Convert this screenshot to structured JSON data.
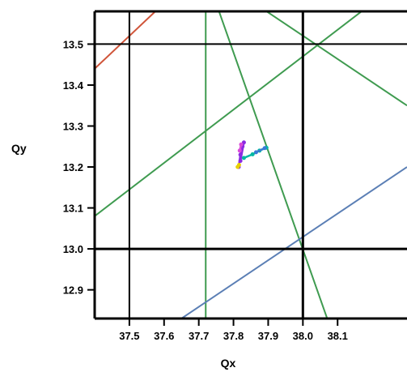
{
  "chart_data": {
    "type": "line",
    "title": "",
    "xlabel": "Qx",
    "ylabel": "Qy",
    "xlim": [
      37.4,
      38.3
    ],
    "ylim": [
      12.83,
      13.58
    ],
    "xticks": [
      37.5,
      37.6,
      37.7,
      37.8,
      37.9,
      38.0,
      38.1
    ],
    "xtick_labels": [
      "37.5",
      "37.6",
      "37.7",
      "37.8",
      "37.9",
      "38.0",
      "38.1"
    ],
    "yticks": [
      12.9,
      13.0,
      13.1,
      13.2,
      13.3,
      13.4,
      13.5
    ],
    "ytick_labels": [
      "12.9",
      "13.0",
      "13.1",
      "13.2",
      "13.3",
      "13.4",
      "13.5"
    ],
    "grid": false,
    "integer_resonance_lines": {
      "color": "#000000",
      "vertical_x": [
        37.5,
        38.0
      ],
      "horizontal_y": [
        13.0,
        13.5
      ]
    },
    "resonance_lines": [
      {
        "color": "#d0553a",
        "points": [
          [
            37.4,
            13.44
          ],
          [
            37.6,
            13.6
          ]
        ]
      },
      {
        "color": "#3f9b50",
        "points": [
          [
            37.72,
            12.83
          ],
          [
            37.72,
            13.58
          ]
        ]
      },
      {
        "color": "#3f9b50",
        "points": [
          [
            37.4,
            13.08
          ],
          [
            38.2,
            13.6
          ]
        ]
      },
      {
        "color": "#3f9b50",
        "points": [
          [
            37.75,
            13.6
          ],
          [
            38.07,
            12.83
          ]
        ]
      },
      {
        "color": "#3f9b50",
        "points": [
          [
            37.86,
            13.6
          ],
          [
            38.3,
            13.35
          ]
        ]
      },
      {
        "color": "#5b7fb5",
        "points": [
          [
            37.65,
            12.83
          ],
          [
            38.3,
            13.2
          ]
        ]
      }
    ],
    "working_points": [
      {
        "color": "#8a2be2",
        "x": [
          37.815,
          37.82,
          37.826,
          37.83,
          37.82
        ],
        "y": [
          13.2,
          13.23,
          13.25,
          13.26,
          13.215
        ]
      },
      {
        "color": "#d94ad9",
        "x": [
          37.818,
          37.822
        ],
        "y": [
          13.24,
          13.255
        ]
      },
      {
        "color": "#00b8a3",
        "x": [
          37.83,
          37.855,
          37.875,
          37.895
        ],
        "y": [
          13.222,
          13.231,
          13.24,
          13.247
        ]
      },
      {
        "color": "#3a7bd5",
        "x": [
          37.865,
          37.89
        ],
        "y": [
          13.236,
          13.246
        ]
      },
      {
        "color": "#e8d000",
        "x": [
          37.812,
          37.816
        ],
        "y": [
          13.2,
          13.205
        ]
      }
    ]
  }
}
